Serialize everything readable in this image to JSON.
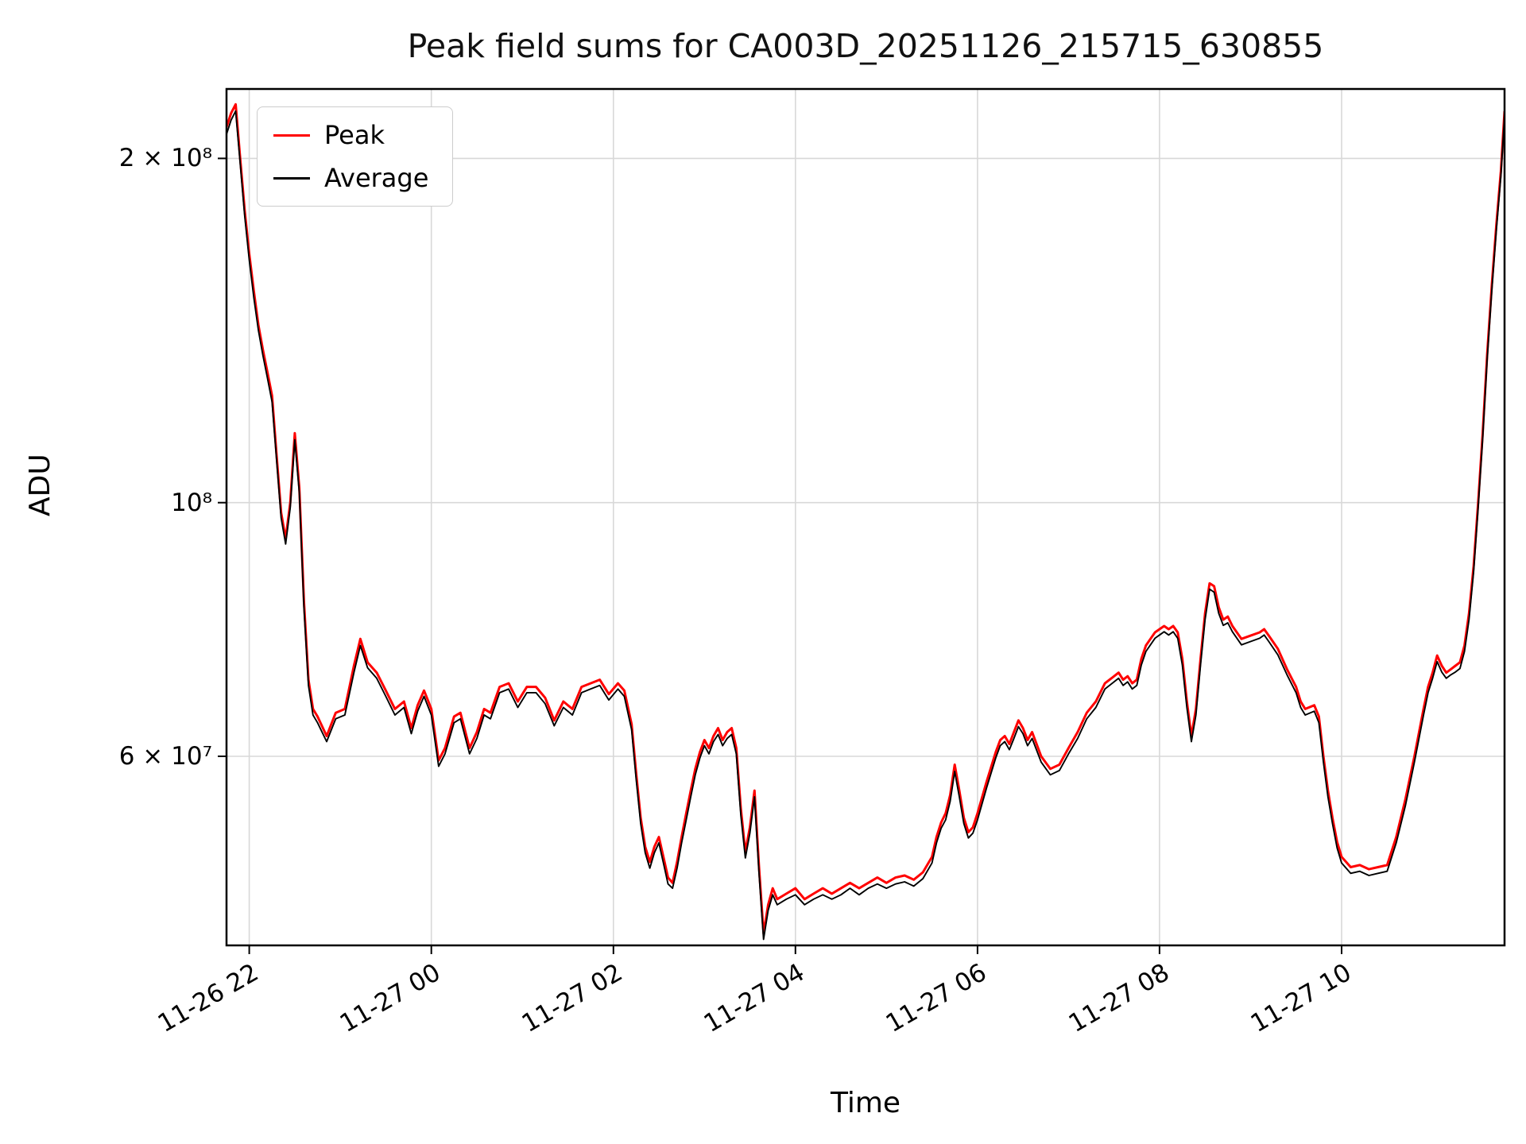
{
  "chart_data": {
    "type": "line",
    "title": "Peak field sums for CA003D_20251126_215715_630855",
    "xlabel": "Time",
    "ylabel": "ADU",
    "y_scale": "log",
    "grid": true,
    "legend_position": "upper-left",
    "axis": {
      "x_min_hours": -0.25,
      "x_max_hours": 13.79,
      "y_min_adu": 41000000,
      "y_max_adu": 230000000
    },
    "x_ticks": [
      {
        "hours": 0,
        "label": "11-26 22"
      },
      {
        "hours": 2,
        "label": "11-27 00"
      },
      {
        "hours": 4,
        "label": "11-27 02"
      },
      {
        "hours": 6,
        "label": "11-27 04"
      },
      {
        "hours": 8,
        "label": "11-27 06"
      },
      {
        "hours": 10,
        "label": "11-27 08"
      },
      {
        "hours": 12,
        "label": "11-27 10"
      }
    ],
    "y_ticks": [
      {
        "value": 200000000,
        "label": "2 × 10⁸"
      },
      {
        "value": 100000000,
        "label": "10⁸"
      },
      {
        "value": 60000000,
        "label": "6 × 10⁷"
      }
    ],
    "values_scale_adu": 10000000,
    "x_hours": [
      -0.25,
      -0.2,
      -0.15,
      -0.1,
      -0.05,
      0,
      0.05,
      0.1,
      0.15,
      0.2,
      0.25,
      0.3,
      0.35,
      0.4,
      0.45,
      0.5,
      0.55,
      0.6,
      0.65,
      0.7,
      0.75,
      0.85,
      0.95,
      1.05,
      1.15,
      1.22,
      1.3,
      1.4,
      1.5,
      1.6,
      1.7,
      1.78,
      1.85,
      1.92,
      2,
      2.08,
      2.15,
      2.25,
      2.32,
      2.42,
      2.5,
      2.58,
      2.65,
      2.75,
      2.85,
      2.95,
      3.05,
      3.15,
      3.25,
      3.35,
      3.45,
      3.55,
      3.65,
      3.75,
      3.85,
      3.95,
      4.05,
      4.12,
      4.2,
      4.25,
      4.3,
      4.35,
      4.4,
      4.45,
      4.5,
      4.55,
      4.6,
      4.65,
      4.7,
      4.75,
      4.8,
      4.85,
      4.9,
      4.95,
      5,
      5.05,
      5.1,
      5.15,
      5.2,
      5.25,
      5.3,
      5.35,
      5.4,
      5.45,
      5.5,
      5.55,
      5.6,
      5.65,
      5.7,
      5.75,
      5.8,
      5.9,
      6,
      6.1,
      6.2,
      6.3,
      6.4,
      6.5,
      6.6,
      6.7,
      6.8,
      6.9,
      7,
      7.1,
      7.2,
      7.3,
      7.4,
      7.5,
      7.55,
      7.6,
      7.65,
      7.7,
      7.75,
      7.8,
      7.85,
      7.9,
      7.95,
      8,
      8.1,
      8.2,
      8.25,
      8.3,
      8.35,
      8.4,
      8.45,
      8.5,
      8.55,
      8.6,
      8.7,
      8.8,
      8.9,
      9,
      9.1,
      9.2,
      9.3,
      9.4,
      9.5,
      9.55,
      9.6,
      9.65,
      9.7,
      9.75,
      9.8,
      9.85,
      9.9,
      9.95,
      10,
      10.05,
      10.1,
      10.15,
      10.2,
      10.25,
      10.3,
      10.35,
      10.4,
      10.45,
      10.5,
      10.55,
      10.6,
      10.65,
      10.7,
      10.75,
      10.8,
      10.9,
      11,
      11.1,
      11.15,
      11.2,
      11.3,
      11.4,
      11.5,
      11.55,
      11.6,
      11.7,
      11.75,
      11.8,
      11.85,
      11.9,
      11.95,
      12,
      12.05,
      12.1,
      12.2,
      12.3,
      12.4,
      12.5,
      12.6,
      12.7,
      12.8,
      12.9,
      12.95,
      13,
      13.05,
      13.1,
      13.15,
      13.2,
      13.25,
      13.3,
      13.35,
      13.4,
      13.45,
      13.5,
      13.55,
      13.6,
      13.65,
      13.7,
      13.75,
      13.79
    ],
    "series": [
      {
        "name": "Peak",
        "color": "#ff0000",
        "values": [
          21.3,
          21.9,
          22.3,
          20.0,
          18.0,
          16.5,
          15.3,
          14.3,
          13.6,
          13.0,
          12.4,
          11.0,
          9.8,
          9.3,
          10.0,
          11.5,
          10.3,
          8.2,
          7.0,
          6.6,
          6.5,
          6.25,
          6.55,
          6.6,
          7.2,
          7.6,
          7.25,
          7.1,
          6.85,
          6.6,
          6.7,
          6.35,
          6.65,
          6.85,
          6.6,
          5.95,
          6.1,
          6.5,
          6.55,
          6.1,
          6.3,
          6.6,
          6.55,
          6.9,
          6.95,
          6.7,
          6.9,
          6.9,
          6.75,
          6.45,
          6.7,
          6.6,
          6.9,
          6.95,
          7.0,
          6.8,
          6.95,
          6.85,
          6.4,
          5.8,
          5.3,
          5.0,
          4.85,
          5.0,
          5.1,
          4.9,
          4.7,
          4.65,
          4.85,
          5.1,
          5.35,
          5.6,
          5.85,
          6.05,
          6.2,
          6.1,
          6.25,
          6.35,
          6.2,
          6.3,
          6.35,
          6.1,
          5.4,
          4.95,
          5.2,
          5.6,
          4.8,
          4.2,
          4.45,
          4.6,
          4.5,
          4.55,
          4.6,
          4.5,
          4.55,
          4.6,
          4.55,
          4.6,
          4.65,
          4.6,
          4.65,
          4.7,
          4.65,
          4.7,
          4.72,
          4.68,
          4.75,
          4.9,
          5.1,
          5.25,
          5.35,
          5.55,
          5.9,
          5.6,
          5.3,
          5.15,
          5.2,
          5.35,
          5.7,
          6.05,
          6.2,
          6.25,
          6.15,
          6.3,
          6.45,
          6.35,
          6.2,
          6.3,
          6.0,
          5.85,
          5.9,
          6.1,
          6.3,
          6.55,
          6.7,
          6.95,
          7.05,
          7.1,
          7.0,
          7.05,
          6.95,
          7.0,
          7.3,
          7.5,
          7.6,
          7.7,
          7.75,
          7.8,
          7.75,
          7.8,
          7.7,
          7.3,
          6.7,
          6.25,
          6.6,
          7.3,
          8.0,
          8.5,
          8.45,
          8.1,
          7.9,
          7.95,
          7.8,
          7.6,
          7.65,
          7.7,
          7.75,
          7.65,
          7.45,
          7.15,
          6.9,
          6.7,
          6.6,
          6.65,
          6.5,
          6.0,
          5.6,
          5.3,
          5.05,
          4.9,
          4.85,
          4.8,
          4.82,
          4.78,
          4.8,
          4.82,
          5.1,
          5.5,
          6.0,
          6.6,
          6.9,
          7.1,
          7.35,
          7.2,
          7.1,
          7.15,
          7.2,
          7.25,
          7.5,
          8.0,
          8.8,
          10.0,
          11.5,
          13.5,
          15.5,
          17.5,
          19.5,
          22.0
        ]
      },
      {
        "name": "Average",
        "color": "#000000",
        "values": [
          21.0,
          21.6,
          22.0,
          19.8,
          17.8,
          16.3,
          15.1,
          14.15,
          13.45,
          12.85,
          12.25,
          10.9,
          9.7,
          9.2,
          9.9,
          11.35,
          10.2,
          8.1,
          6.92,
          6.52,
          6.42,
          6.18,
          6.47,
          6.52,
          7.1,
          7.5,
          7.17,
          7.02,
          6.77,
          6.52,
          6.62,
          6.28,
          6.57,
          6.77,
          6.52,
          5.88,
          6.03,
          6.42,
          6.47,
          6.03,
          6.22,
          6.52,
          6.47,
          6.82,
          6.87,
          6.62,
          6.82,
          6.82,
          6.67,
          6.38,
          6.62,
          6.52,
          6.82,
          6.87,
          6.92,
          6.72,
          6.87,
          6.77,
          6.33,
          5.73,
          5.24,
          4.94,
          4.79,
          4.94,
          5.04,
          4.84,
          4.64,
          4.6,
          4.79,
          5.04,
          5.28,
          5.53,
          5.78,
          5.98,
          6.13,
          6.03,
          6.18,
          6.27,
          6.13,
          6.22,
          6.27,
          6.03,
          5.33,
          4.89,
          5.14,
          5.53,
          4.74,
          4.15,
          4.4,
          4.54,
          4.45,
          4.5,
          4.54,
          4.45,
          4.5,
          4.54,
          4.5,
          4.54,
          4.6,
          4.54,
          4.6,
          4.64,
          4.6,
          4.64,
          4.66,
          4.62,
          4.69,
          4.84,
          5.04,
          5.19,
          5.28,
          5.48,
          5.82,
          5.53,
          5.24,
          5.09,
          5.14,
          5.28,
          5.63,
          5.98,
          6.13,
          6.18,
          6.08,
          6.22,
          6.37,
          6.28,
          6.13,
          6.22,
          5.93,
          5.78,
          5.83,
          6.03,
          6.22,
          6.47,
          6.62,
          6.87,
          6.97,
          7.02,
          6.92,
          6.97,
          6.87,
          6.92,
          7.21,
          7.41,
          7.51,
          7.61,
          7.66,
          7.71,
          7.66,
          7.71,
          7.61,
          7.21,
          6.62,
          6.18,
          6.52,
          7.21,
          7.9,
          8.4,
          8.35,
          8.0,
          7.81,
          7.85,
          7.71,
          7.51,
          7.56,
          7.61,
          7.66,
          7.56,
          7.36,
          7.07,
          6.82,
          6.62,
          6.52,
          6.57,
          6.42,
          5.93,
          5.53,
          5.24,
          4.99,
          4.84,
          4.79,
          4.74,
          4.76,
          4.72,
          4.74,
          4.76,
          5.04,
          5.43,
          5.93,
          6.52,
          6.82,
          7.02,
          7.26,
          7.11,
          7.02,
          7.07,
          7.11,
          7.16,
          7.41,
          7.9,
          8.7,
          9.9,
          11.38,
          13.36,
          15.34,
          17.32,
          19.3,
          21.8
        ]
      }
    ],
    "style": {
      "grid_color": "#d8d8d8",
      "spine_color": "#000000",
      "background": "#ffffff"
    }
  }
}
